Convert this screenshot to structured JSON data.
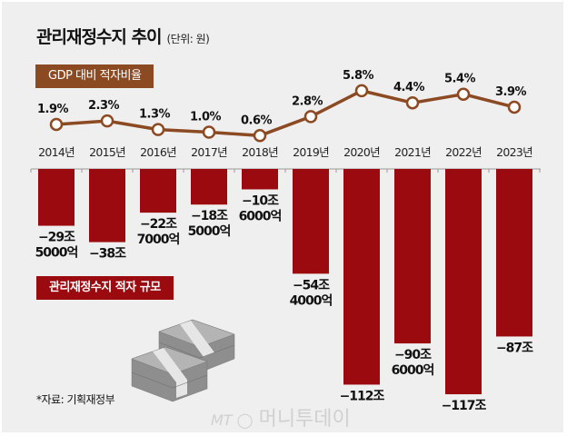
{
  "title": "관리재정수지 추이",
  "unit": "(단위: 원)",
  "line_tag": "GDP 대비 적자비율",
  "bar_tag": "관리재정수지 적자 규모",
  "source": "*자료: 기획재정부",
  "watermark": "MT 머니투데이",
  "colors": {
    "line": "#8c4a23",
    "bar": "#9b0a0e",
    "background": "#efefef"
  },
  "chart_data": [
    {
      "type": "line",
      "categories": [
        "2014년",
        "2015년",
        "2016년",
        "2017년",
        "2018년",
        "2019년",
        "2020년",
        "2021년",
        "2022년",
        "2023년"
      ],
      "values": [
        1.9,
        2.3,
        1.3,
        1.0,
        0.6,
        2.8,
        5.8,
        4.4,
        5.4,
        3.9
      ],
      "labels": [
        "1.9%",
        "2.3%",
        "1.3%",
        "1.0%",
        "0.6%",
        "2.8%",
        "5.8%",
        "4.4%",
        "5.4%",
        "3.9%"
      ],
      "legend": "GDP 대비 적자비율"
    },
    {
      "type": "bar",
      "categories": [
        "2014년",
        "2015년",
        "2016년",
        "2017년",
        "2018년",
        "2019년",
        "2020년",
        "2021년",
        "2022년",
        "2023년"
      ],
      "values": [
        -29.5,
        -38,
        -22.7,
        -18.5,
        -10.6,
        -54.4,
        -112,
        -90.6,
        -117,
        -87
      ],
      "labels": [
        [
          "−29조",
          "5000억"
        ],
        [
          "−38조"
        ],
        [
          "−22조",
          "7000억"
        ],
        [
          "−18조",
          "5000억"
        ],
        [
          "−10조",
          "6000억"
        ],
        [
          "−54조",
          "4000억"
        ],
        [
          "−112조"
        ],
        [
          "−90조",
          "6000억"
        ],
        [
          "−117조"
        ],
        [
          "−87조"
        ]
      ],
      "legend": "관리재정수지 적자 규모",
      "unit": "조 원"
    }
  ]
}
